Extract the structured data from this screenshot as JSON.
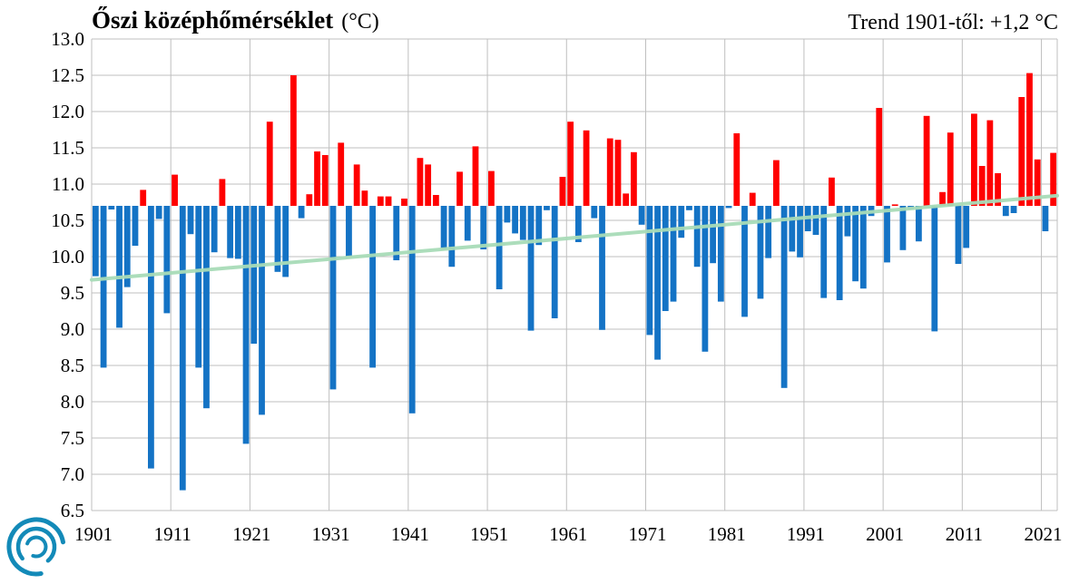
{
  "chart_data": {
    "type": "bar",
    "title": "Őszi középhőmérséklet",
    "title_unit": "(°C)",
    "annotation": "Trend 1901-től: +1,2 °C",
    "baseline": 10.7,
    "ylim": [
      6.5,
      13.0
    ],
    "yticks": [
      "13.0",
      "12.5",
      "12.0",
      "11.5",
      "11.0",
      "10.5",
      "10.0",
      "9.5",
      "9.0",
      "8.5",
      "8.0",
      "7.5",
      "7.0",
      "6.5"
    ],
    "xticks": [
      "1901",
      "1911",
      "1921",
      "1931",
      "1941",
      "1951",
      "1961",
      "1971",
      "1981",
      "1991",
      "2001",
      "2011",
      "2021"
    ],
    "years": [
      1901,
      1902,
      1903,
      1904,
      1905,
      1906,
      1907,
      1908,
      1909,
      1910,
      1911,
      1912,
      1913,
      1914,
      1915,
      1916,
      1917,
      1918,
      1919,
      1920,
      1921,
      1922,
      1923,
      1924,
      1925,
      1926,
      1927,
      1928,
      1929,
      1930,
      1931,
      1932,
      1933,
      1934,
      1935,
      1936,
      1937,
      1938,
      1939,
      1940,
      1941,
      1942,
      1943,
      1944,
      1945,
      1946,
      1947,
      1948,
      1949,
      1950,
      1951,
      1952,
      1953,
      1954,
      1955,
      1956,
      1957,
      1958,
      1959,
      1960,
      1961,
      1962,
      1963,
      1964,
      1965,
      1966,
      1967,
      1968,
      1969,
      1970,
      1971,
      1972,
      1973,
      1974,
      1975,
      1976,
      1977,
      1978,
      1979,
      1980,
      1981,
      1982,
      1983,
      1984,
      1985,
      1986,
      1987,
      1988,
      1989,
      1990,
      1991,
      1992,
      1993,
      1994,
      1995,
      1996,
      1997,
      1998,
      1999,
      2000,
      2001,
      2002,
      2003,
      2004,
      2005,
      2006,
      2007,
      2008,
      2009,
      2010,
      2011,
      2012,
      2013,
      2014,
      2015,
      2016,
      2017,
      2018,
      2019,
      2020,
      2021,
      2022
    ],
    "values": [
      9.73,
      8.47,
      10.65,
      9.02,
      9.58,
      10.15,
      10.92,
      7.08,
      10.52,
      9.22,
      11.13,
      6.78,
      10.31,
      8.47,
      7.91,
      10.06,
      11.07,
      9.98,
      9.97,
      7.42,
      8.8,
      7.82,
      11.86,
      9.79,
      9.72,
      12.5,
      10.53,
      10.86,
      11.45,
      11.4,
      8.17,
      11.57,
      10.0,
      11.27,
      10.91,
      8.47,
      10.83,
      10.83,
      9.95,
      10.8,
      7.84,
      11.36,
      11.27,
      10.85,
      10.1,
      9.86,
      11.17,
      10.22,
      11.52,
      10.1,
      11.18,
      9.55,
      10.47,
      10.32,
      10.23,
      8.98,
      10.16,
      10.64,
      9.15,
      11.1,
      11.86,
      10.2,
      11.74,
      10.53,
      8.99,
      11.63,
      11.61,
      10.87,
      11.44,
      10.44,
      8.92,
      8.58,
      9.25,
      9.38,
      10.26,
      10.64,
      9.86,
      8.69,
      9.91,
      9.38,
      10.67,
      11.7,
      9.17,
      10.88,
      9.42,
      9.98,
      11.33,
      8.19,
      10.07,
      9.99,
      10.35,
      10.3,
      9.43,
      11.09,
      9.4,
      10.28,
      9.66,
      9.56,
      10.56,
      12.05,
      9.92,
      10.72,
      10.09,
      10.66,
      10.21,
      11.94,
      8.97,
      10.89,
      11.71,
      9.9,
      10.12,
      11.97,
      11.25,
      11.88,
      11.15,
      10.56,
      10.6,
      12.2,
      12.53,
      11.34,
      10.35,
      11.43
    ],
    "trend": {
      "start_year": 1901,
      "end_year": 2022,
      "start_value": 9.68,
      "end_value": 10.84
    },
    "colors": {
      "above": "#ff0000",
      "below": "#1473c5",
      "trend": "#a8dcb8",
      "grid": "#bfbfbf",
      "logo": "#138ab8"
    },
    "grid": true
  }
}
